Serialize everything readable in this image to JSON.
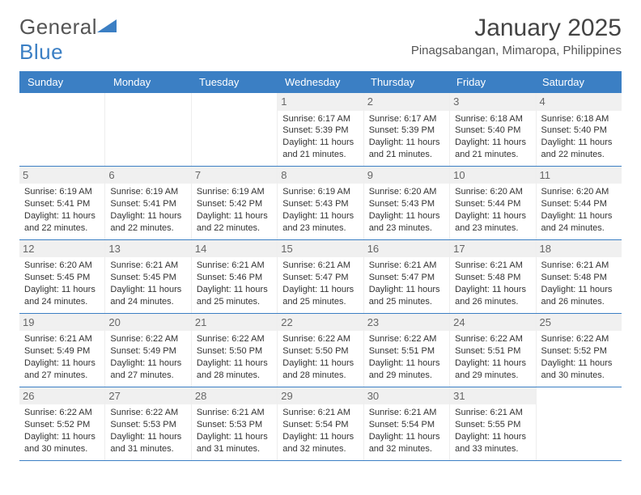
{
  "logo": {
    "text1": "General",
    "text2": "Blue"
  },
  "title": "January 2025",
  "location": "Pinagsabangan, Mimaropa, Philippines",
  "colors": {
    "header_bg": "#3b7fc4",
    "daynum_bg": "#f0f0f0",
    "text": "#333333",
    "background": "#ffffff"
  },
  "daynames": [
    "Sunday",
    "Monday",
    "Tuesday",
    "Wednesday",
    "Thursday",
    "Friday",
    "Saturday"
  ],
  "weeks": [
    [
      null,
      null,
      null,
      {
        "n": "1",
        "sr": "6:17 AM",
        "ss": "5:39 PM",
        "dl": "11 hours and 21 minutes."
      },
      {
        "n": "2",
        "sr": "6:17 AM",
        "ss": "5:39 PM",
        "dl": "11 hours and 21 minutes."
      },
      {
        "n": "3",
        "sr": "6:18 AM",
        "ss": "5:40 PM",
        "dl": "11 hours and 21 minutes."
      },
      {
        "n": "4",
        "sr": "6:18 AM",
        "ss": "5:40 PM",
        "dl": "11 hours and 22 minutes."
      }
    ],
    [
      {
        "n": "5",
        "sr": "6:19 AM",
        "ss": "5:41 PM",
        "dl": "11 hours and 22 minutes."
      },
      {
        "n": "6",
        "sr": "6:19 AM",
        "ss": "5:41 PM",
        "dl": "11 hours and 22 minutes."
      },
      {
        "n": "7",
        "sr": "6:19 AM",
        "ss": "5:42 PM",
        "dl": "11 hours and 22 minutes."
      },
      {
        "n": "8",
        "sr": "6:19 AM",
        "ss": "5:43 PM",
        "dl": "11 hours and 23 minutes."
      },
      {
        "n": "9",
        "sr": "6:20 AM",
        "ss": "5:43 PM",
        "dl": "11 hours and 23 minutes."
      },
      {
        "n": "10",
        "sr": "6:20 AM",
        "ss": "5:44 PM",
        "dl": "11 hours and 23 minutes."
      },
      {
        "n": "11",
        "sr": "6:20 AM",
        "ss": "5:44 PM",
        "dl": "11 hours and 24 minutes."
      }
    ],
    [
      {
        "n": "12",
        "sr": "6:20 AM",
        "ss": "5:45 PM",
        "dl": "11 hours and 24 minutes."
      },
      {
        "n": "13",
        "sr": "6:21 AM",
        "ss": "5:45 PM",
        "dl": "11 hours and 24 minutes."
      },
      {
        "n": "14",
        "sr": "6:21 AM",
        "ss": "5:46 PM",
        "dl": "11 hours and 25 minutes."
      },
      {
        "n": "15",
        "sr": "6:21 AM",
        "ss": "5:47 PM",
        "dl": "11 hours and 25 minutes."
      },
      {
        "n": "16",
        "sr": "6:21 AM",
        "ss": "5:47 PM",
        "dl": "11 hours and 25 minutes."
      },
      {
        "n": "17",
        "sr": "6:21 AM",
        "ss": "5:48 PM",
        "dl": "11 hours and 26 minutes."
      },
      {
        "n": "18",
        "sr": "6:21 AM",
        "ss": "5:48 PM",
        "dl": "11 hours and 26 minutes."
      }
    ],
    [
      {
        "n": "19",
        "sr": "6:21 AM",
        "ss": "5:49 PM",
        "dl": "11 hours and 27 minutes."
      },
      {
        "n": "20",
        "sr": "6:22 AM",
        "ss": "5:49 PM",
        "dl": "11 hours and 27 minutes."
      },
      {
        "n": "21",
        "sr": "6:22 AM",
        "ss": "5:50 PM",
        "dl": "11 hours and 28 minutes."
      },
      {
        "n": "22",
        "sr": "6:22 AM",
        "ss": "5:50 PM",
        "dl": "11 hours and 28 minutes."
      },
      {
        "n": "23",
        "sr": "6:22 AM",
        "ss": "5:51 PM",
        "dl": "11 hours and 29 minutes."
      },
      {
        "n": "24",
        "sr": "6:22 AM",
        "ss": "5:51 PM",
        "dl": "11 hours and 29 minutes."
      },
      {
        "n": "25",
        "sr": "6:22 AM",
        "ss": "5:52 PM",
        "dl": "11 hours and 30 minutes."
      }
    ],
    [
      {
        "n": "26",
        "sr": "6:22 AM",
        "ss": "5:52 PM",
        "dl": "11 hours and 30 minutes."
      },
      {
        "n": "27",
        "sr": "6:22 AM",
        "ss": "5:53 PM",
        "dl": "11 hours and 31 minutes."
      },
      {
        "n": "28",
        "sr": "6:21 AM",
        "ss": "5:53 PM",
        "dl": "11 hours and 31 minutes."
      },
      {
        "n": "29",
        "sr": "6:21 AM",
        "ss": "5:54 PM",
        "dl": "11 hours and 32 minutes."
      },
      {
        "n": "30",
        "sr": "6:21 AM",
        "ss": "5:54 PM",
        "dl": "11 hours and 32 minutes."
      },
      {
        "n": "31",
        "sr": "6:21 AM",
        "ss": "5:55 PM",
        "dl": "11 hours and 33 minutes."
      },
      null
    ]
  ],
  "labels": {
    "sunrise": "Sunrise:",
    "sunset": "Sunset:",
    "daylight": "Daylight:"
  }
}
